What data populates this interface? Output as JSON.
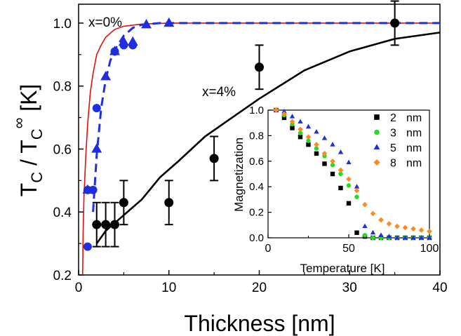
{
  "chart_data": [
    {
      "type": "scatter",
      "xlabel": "Thickness [nm]",
      "ylabel": {
        "t1": "T",
        "s1": "C",
        "sep": " / T",
        "s2": "C",
        "sup": "∞",
        "unit": "  [K]"
      },
      "xlim": [
        0,
        40
      ],
      "ylim": [
        0.2,
        1.06
      ],
      "xticks": [
        "0",
        "10",
        "20",
        "30",
        "40"
      ],
      "yticks": [
        "0.2",
        "0.4",
        "0.6",
        "0.8",
        "1.0"
      ],
      "annotations": {
        "a": "x=0%",
        "b": "x=4%"
      },
      "series": [
        {
          "kind": "line",
          "style": "solid",
          "color": "#e01010",
          "points": [
            [
              0.45,
              0.2
            ],
            [
              0.5,
              0.33
            ],
            [
              0.6,
              0.45
            ],
            [
              0.8,
              0.58
            ],
            [
              1.0,
              0.68
            ],
            [
              1.3,
              0.78
            ],
            [
              1.6,
              0.84
            ],
            [
              2.0,
              0.9
            ],
            [
              2.5,
              0.93
            ],
            [
              3.0,
              0.955
            ],
            [
              4.0,
              0.98
            ],
            [
              5.0,
              0.99
            ],
            [
              7.0,
              0.997
            ],
            [
              10.0,
              1.0
            ],
            [
              40.0,
              1.0
            ]
          ]
        },
        {
          "kind": "line",
          "style": "dashed",
          "color": "#1f2ee0",
          "points": [
            [
              1.6,
              0.4
            ],
            [
              2.0,
              0.58
            ],
            [
              2.5,
              0.73
            ],
            [
              3.0,
              0.82
            ],
            [
              3.5,
              0.88
            ],
            [
              4.0,
              0.915
            ],
            [
              5.0,
              0.96
            ],
            [
              6.0,
              0.985
            ],
            [
              7.0,
              0.995
            ],
            [
              9.0,
              1.0
            ],
            [
              40.0,
              1.0
            ]
          ]
        },
        {
          "kind": "markers",
          "marker": "circle",
          "color": "#1f2ee0",
          "points": [
            [
              1.0,
              0.29
            ],
            [
              1.0,
              0.47
            ],
            [
              1.6,
              0.47
            ],
            [
              2.0,
              0.73
            ],
            [
              4.0,
              0.91
            ],
            [
              5.0,
              0.93
            ],
            [
              6.0,
              0.93
            ]
          ]
        },
        {
          "kind": "markers",
          "marker": "triangle",
          "color": "#1f2ee0",
          "points": [
            [
              1.0,
              0.47
            ],
            [
              2.0,
              0.6
            ],
            [
              3.0,
              0.83
            ],
            [
              4.0,
              0.91
            ],
            [
              5.0,
              0.94
            ],
            [
              6.0,
              0.94
            ],
            [
              7.5,
              0.995
            ],
            [
              10.0,
              1.0
            ]
          ]
        },
        {
          "kind": "line",
          "style": "solid",
          "color": "#000000",
          "points": [
            [
              2,
              0.3
            ],
            [
              3,
              0.34
            ],
            [
              5,
              0.39
            ],
            [
              7,
              0.44
            ],
            [
              9,
              0.51
            ],
            [
              11,
              0.56
            ],
            [
              14,
              0.64
            ],
            [
              17,
              0.7
            ],
            [
              20,
              0.76
            ],
            [
              25,
              0.85
            ],
            [
              30,
              0.91
            ],
            [
              35,
              0.95
            ],
            [
              40,
              0.97
            ]
          ]
        },
        {
          "kind": "errorbar",
          "color": "#000000",
          "points": [
            [
              2,
              0.36,
              0.07
            ],
            [
              3,
              0.36,
              0.07
            ],
            [
              4,
              0.36,
              0.07
            ],
            [
              5,
              0.43,
              0.07
            ],
            [
              10,
              0.43,
              0.07
            ],
            [
              15,
              0.57,
              0.07
            ],
            [
              20,
              0.86,
              0.07
            ],
            [
              35,
              1.0,
              0.07
            ]
          ]
        }
      ]
    },
    {
      "type": "scatter",
      "xlabel": "Temperature [K]",
      "ylabel": "Magnetization",
      "xlim": [
        0,
        100
      ],
      "ylim": [
        0,
        1.0
      ],
      "xticks": [
        "0",
        "50",
        "100"
      ],
      "yticks": [
        "0.0",
        "0.2",
        "0.4",
        "0.6",
        "0.8",
        "1.0"
      ],
      "legend": [
        {
          "num": "2",
          "unit": "nm"
        },
        {
          "num": "3",
          "unit": "nm"
        },
        {
          "num": "5",
          "unit": "nm"
        },
        {
          "num": "8",
          "unit": "nm"
        }
      ],
      "series": [
        {
          "marker": "square",
          "color": "#000000",
          "points": [
            [
              5,
              1.0
            ],
            [
              10,
              0.94
            ],
            [
              15,
              0.86
            ],
            [
              20,
              0.79
            ],
            [
              25,
              0.73
            ],
            [
              30,
              0.66
            ],
            [
              35,
              0.58
            ],
            [
              40,
              0.5
            ],
            [
              45,
              0.39
            ],
            [
              50,
              0.27
            ],
            [
              55,
              0.04
            ],
            [
              60,
              0.01
            ],
            [
              65,
              0.0
            ],
            [
              70,
              0.0
            ],
            [
              75,
              0.0
            ],
            [
              80,
              0.0
            ],
            [
              85,
              0.0
            ],
            [
              90,
              0.0
            ],
            [
              95,
              0.0
            ],
            [
              100,
              0.0
            ]
          ]
        },
        {
          "marker": "circle",
          "color": "#22dd22",
          "points": [
            [
              5,
              1.0
            ],
            [
              10,
              0.96
            ],
            [
              15,
              0.89
            ],
            [
              20,
              0.82
            ],
            [
              25,
              0.76
            ],
            [
              30,
              0.7
            ],
            [
              35,
              0.64
            ],
            [
              40,
              0.57
            ],
            [
              45,
              0.5
            ],
            [
              50,
              0.41
            ],
            [
              55,
              0.32
            ],
            [
              60,
              0.02
            ],
            [
              65,
              0.0
            ],
            [
              70,
              0.0
            ],
            [
              75,
              0.0
            ],
            [
              80,
              0.0
            ],
            [
              85,
              0.0
            ],
            [
              90,
              0.0
            ],
            [
              95,
              0.0
            ],
            [
              100,
              0.0
            ]
          ]
        },
        {
          "marker": "triangle",
          "color": "#1f2ee0",
          "points": [
            [
              5,
              1.0
            ],
            [
              10,
              0.99
            ],
            [
              15,
              0.95
            ],
            [
              20,
              0.91
            ],
            [
              25,
              0.87
            ],
            [
              30,
              0.83
            ],
            [
              35,
              0.78
            ],
            [
              40,
              0.73
            ],
            [
              45,
              0.67
            ],
            [
              50,
              0.59
            ],
            [
              55,
              0.4
            ],
            [
              60,
              0.09
            ],
            [
              65,
              0.04
            ],
            [
              70,
              0.02
            ],
            [
              75,
              0.01
            ],
            [
              80,
              0.0
            ],
            [
              85,
              0.0
            ],
            [
              90,
              0.0
            ],
            [
              95,
              0.0
            ],
            [
              100,
              0.0
            ]
          ]
        },
        {
          "marker": "diamond",
          "color": "#ff8a1e",
          "points": [
            [
              5,
              1.0
            ],
            [
              10,
              0.97
            ],
            [
              15,
              0.91
            ],
            [
              20,
              0.85
            ],
            [
              25,
              0.79
            ],
            [
              30,
              0.73
            ],
            [
              35,
              0.66
            ],
            [
              40,
              0.6
            ],
            [
              45,
              0.53
            ],
            [
              50,
              0.46
            ],
            [
              55,
              0.37
            ],
            [
              60,
              0.26
            ],
            [
              65,
              0.19
            ],
            [
              70,
              0.14
            ],
            [
              75,
              0.11
            ],
            [
              80,
              0.09
            ],
            [
              85,
              0.08
            ],
            [
              90,
              0.07
            ],
            [
              95,
              0.06
            ],
            [
              100,
              0.05
            ]
          ]
        }
      ]
    }
  ]
}
